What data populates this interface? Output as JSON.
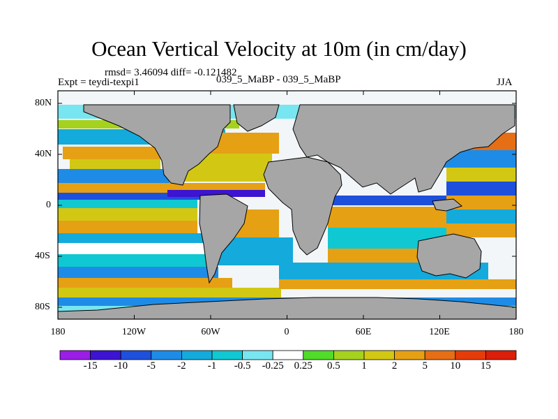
{
  "title": "Ocean Vertical Velocity at 10m (in cm/day)",
  "stats": "rmsd= 3.46094 diff= -0.121482",
  "left_label": "Expt = teydi-texpi1",
  "center_label": "039_5_MaBP - 039_5_MaBP",
  "right_label": "JJA",
  "map": {
    "lat_ticks": [
      "80N",
      "40N",
      "0",
      "40S",
      "80S"
    ],
    "lon_ticks": [
      "180",
      "120W",
      "60W",
      "0",
      "60E",
      "120E",
      "180"
    ],
    "land_color": "#a6a6a6"
  },
  "colorbar": {
    "labels": [
      "-15",
      "-10",
      "-5",
      "-2",
      "-1",
      "-0.5",
      "-0.25",
      "0.25",
      "0.5",
      "1",
      "2",
      "5",
      "10",
      "15"
    ],
    "colors": [
      "#9b1ee6",
      "#3c14d2",
      "#1e50dc",
      "#1e8ce6",
      "#14aadc",
      "#10c8d2",
      "#78e6f0",
      "#ffffff",
      "#50dc28",
      "#a5d21e",
      "#d2c814",
      "#e6a014",
      "#e66e14",
      "#e63c0a",
      "#dc1e0a"
    ]
  }
}
